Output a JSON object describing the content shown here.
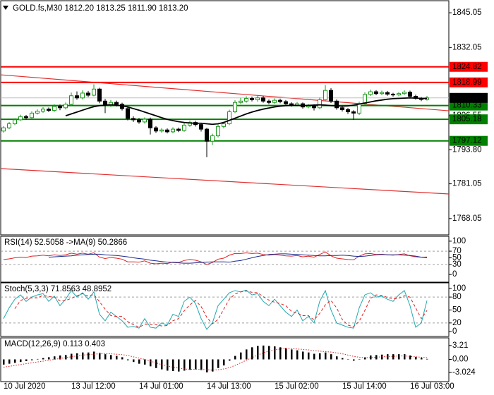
{
  "chart_data": [
    {
      "type": "candlestick",
      "title": "GOLD.fs,M30  1812.20 1813.25 1811.90 1813.20",
      "categories": [
        "10 Jul 2020",
        null,
        null,
        null,
        null,
        null,
        null,
        null,
        null,
        null,
        null,
        null,
        "13 Jul 12:00",
        null,
        null,
        null,
        null,
        null,
        null,
        null,
        null,
        null,
        null,
        null,
        "14 Jul 01:00",
        null,
        null,
        null,
        null,
        null,
        null,
        null,
        null,
        null,
        null,
        null,
        "14 Jul 13:00",
        null,
        null,
        null,
        null,
        null,
        null,
        null,
        null,
        null,
        null,
        null,
        "15 Jul 02:00",
        null,
        null,
        null,
        null,
        null,
        null,
        null,
        null,
        null,
        null,
        null,
        "15 Jul 14:00",
        null,
        null,
        null,
        null,
        null,
        null,
        null,
        null,
        null,
        null,
        null,
        "16 Jul 03:00",
        null,
        null,
        null
      ],
      "open": [
        1800.8,
        1802.0,
        1803.5,
        1805.0,
        1806.2,
        1805.8,
        1807.5,
        1808.2,
        1809.0,
        1808.5,
        1810.0,
        1809.5,
        1810.8,
        1814.0,
        1813.2,
        1815.0,
        1814.2,
        1816.5,
        1812.0,
        1810.5,
        1811.5,
        1810.8,
        1809.2,
        1805.5,
        1805.0,
        1804.2,
        1805.2,
        1802.0,
        1800.8,
        1801.2,
        1800.5,
        1801.5,
        1801.0,
        1803.0,
        1804.0,
        1803.2,
        1801.5,
        1797.0,
        1799.0,
        1802.5,
        1803.5,
        1808.0,
        1811.5,
        1812.0,
        1813.0,
        1812.5,
        1813.2,
        1812.0,
        1811.5,
        1812.3,
        1811.8,
        1811.0,
        1810.5,
        1811.0,
        1809.8,
        1810.2,
        1809.5,
        1812.5,
        1816.0,
        1812.0,
        1809.5,
        1808.8,
        1808.0,
        1807.5,
        1811.0,
        1814.5,
        1815.5,
        1814.8,
        1815.2,
        1814.6,
        1814.3,
        1814.8,
        1815.3,
        1813.8,
        1813.0,
        1812.6
      ],
      "high": [
        1802.6,
        1804.2,
        1805.6,
        1806.9,
        1806.8,
        1808.2,
        1808.9,
        1809.7,
        1809.6,
        1810.8,
        1810.7,
        1811.5,
        1815.2,
        1815.6,
        1816.0,
        1815.8,
        1818.3,
        1817.0,
        1812.8,
        1812.4,
        1812.2,
        1811.4,
        1809.8,
        1806.3,
        1805.7,
        1805.9,
        1805.8,
        1802.6,
        1801.9,
        1801.8,
        1802.2,
        1802.1,
        1803.8,
        1804.7,
        1804.6,
        1803.8,
        1802.0,
        1799.8,
        1803.2,
        1804.3,
        1808.8,
        1812.3,
        1813.2,
        1813.8,
        1813.7,
        1814.0,
        1813.9,
        1812.6,
        1813.0,
        1812.9,
        1812.4,
        1811.6,
        1811.7,
        1811.5,
        1810.9,
        1810.8,
        1813.3,
        1818.0,
        1816.8,
        1812.6,
        1810.2,
        1809.4,
        1808.6,
        1811.8,
        1815.3,
        1816.3,
        1816.1,
        1815.9,
        1815.8,
        1815.1,
        1815.4,
        1816.0,
        1815.9,
        1814.4,
        1813.5,
        1813.9
      ],
      "low": [
        1800.2,
        1801.5,
        1803.0,
        1804.6,
        1805.1,
        1805.3,
        1807.0,
        1807.6,
        1807.9,
        1808.0,
        1808.6,
        1808.9,
        1810.2,
        1812.5,
        1812.6,
        1813.5,
        1813.8,
        1811.2,
        1807.5,
        1809.8,
        1810.0,
        1808.5,
        1804.8,
        1804.2,
        1803.5,
        1803.6,
        1799.5,
        1800.1,
        1800.2,
        1799.9,
        1800.0,
        1800.4,
        1800.5,
        1802.4,
        1802.5,
        1800.6,
        1791.0,
        1795.5,
        1798.4,
        1801.8,
        1803.0,
        1807.5,
        1810.9,
        1811.4,
        1811.9,
        1811.8,
        1811.4,
        1810.8,
        1811.0,
        1811.2,
        1810.4,
        1809.9,
        1810.0,
        1809.2,
        1809.3,
        1808.5,
        1809.0,
        1812.0,
        1811.3,
        1808.8,
        1808.1,
        1807.2,
        1805.0,
        1806.8,
        1810.4,
        1813.9,
        1814.2,
        1814.2,
        1814.0,
        1813.7,
        1813.8,
        1814.3,
        1813.2,
        1812.5,
        1812.0,
        1812.2
      ],
      "close": [
        1802.0,
        1803.5,
        1805.0,
        1806.2,
        1805.8,
        1807.5,
        1808.2,
        1809.0,
        1808.5,
        1810.0,
        1809.5,
        1810.8,
        1814.0,
        1813.2,
        1815.0,
        1814.2,
        1816.5,
        1812.0,
        1810.5,
        1811.5,
        1810.8,
        1809.2,
        1805.5,
        1805.0,
        1804.2,
        1805.2,
        1802.0,
        1800.8,
        1801.2,
        1800.5,
        1801.5,
        1801.0,
        1803.0,
        1804.0,
        1803.2,
        1801.5,
        1797.0,
        1799.0,
        1802.5,
        1803.5,
        1808.0,
        1811.5,
        1812.0,
        1813.0,
        1812.5,
        1813.2,
        1812.0,
        1811.5,
        1812.3,
        1811.8,
        1811.0,
        1810.5,
        1811.0,
        1809.8,
        1810.2,
        1809.5,
        1812.5,
        1816.0,
        1812.0,
        1809.5,
        1808.8,
        1808.0,
        1807.5,
        1811.0,
        1814.5,
        1815.5,
        1814.8,
        1815.2,
        1814.6,
        1814.3,
        1814.8,
        1815.3,
        1813.8,
        1813.0,
        1812.6,
        1813.2
      ],
      "up_color": "#1a9a1a",
      "down_color": "#000000",
      "series": [
        {
          "type": "line",
          "style": "solid",
          "color": "#000000",
          "values": [
            null,
            null,
            null,
            null,
            null,
            null,
            null,
            null,
            null,
            null,
            null,
            1806.5,
            1807.2,
            1807.9,
            1808.6,
            1809.3,
            1809.9,
            1810.3,
            1810.5,
            1810.6,
            1810.5,
            1810.2,
            1809.8,
            1809.2,
            1808.6,
            1807.9,
            1807.2,
            1806.5,
            1805.8,
            1805.2,
            1804.7,
            1804.3,
            1804.0,
            1803.8,
            1803.7,
            1803.7,
            1803.5,
            1803.3,
            1803.5,
            1804.0,
            1804.8,
            1805.6,
            1806.4,
            1807.2,
            1807.9,
            1808.5,
            1809.0,
            1809.4,
            1809.8,
            1810.1,
            1810.3,
            1810.4,
            1810.4,
            1810.3,
            1810.4,
            1810.5,
            1810.6,
            1810.5,
            1810.3,
            1810.2,
            1810.1,
            1810.2,
            1810.5,
            1810.9,
            1811.3,
            1811.7,
            1812.1,
            1812.4,
            1812.7,
            1812.9,
            1813.0,
            1813.1,
            1813.2,
            1813.1,
            1813.0,
            1813.0
          ]
        }
      ],
      "trendlines": [
        {
          "color": "#e03030",
          "values": [
            1821.83,
            1808.37
          ]
        },
        {
          "color": "#e03030",
          "values": [
            1786.74,
            1777.24
          ]
        }
      ],
      "levels": [
        {
          "value": 1824.82,
          "color": "#ff0000",
          "label_color": "#ffffff"
        },
        {
          "value": 1818.99,
          "color": "#ff0000",
          "label_color": "#ffffff"
        },
        {
          "value": 1810.33,
          "color": "#008000",
          "label_color": "#000000"
        },
        {
          "value": 1805.18,
          "color": "#008000",
          "label_color": "#000000"
        },
        {
          "value": 1797.12,
          "color": "#008000",
          "label_color": "#000000"
        }
      ],
      "last_price": {
        "value": 1813.2,
        "label": "1813.20",
        "color": "#000000",
        "line_color": "#c0c0c0"
      },
      "ylim": [
        1762.2,
        1849.3
      ],
      "yticks": [
        1768.05,
        1781.05,
        {
          "value": 1793.8,
          "label": "1793.80"
        },
        1806.55,
        1832.05,
        1845.05
      ],
      "grid": false
    },
    {
      "type": "line",
      "title": "RSI(14) 52.5058  ->MA(9) 50.2866",
      "ylim": [
        -20.8,
        112.5
      ],
      "yticks": [
        0,
        30,
        50,
        70,
        100
      ],
      "levels": [
        70,
        30
      ],
      "series": [
        {
          "type": "line",
          "style": "solid",
          "color": "#e02020",
          "values": [
            45,
            47,
            50,
            52,
            51,
            55,
            56,
            58,
            56,
            59,
            57,
            59,
            64,
            61,
            64,
            61,
            65,
            52,
            48,
            51,
            49,
            46,
            38,
            38,
            37,
            41,
            34,
            32,
            34,
            33,
            37,
            36,
            42,
            45,
            43,
            38,
            30,
            36,
            46,
            49,
            58,
            63,
            63,
            65,
            63,
            64,
            60,
            58,
            60,
            58,
            56,
            55,
            57,
            53,
            55,
            52,
            60,
            68,
            56,
            49,
            47,
            45,
            44,
            55,
            62,
            63,
            60,
            61,
            59,
            58,
            60,
            62,
            56,
            53,
            52,
            52.5058
          ]
        },
        {
          "type": "line",
          "style": "solid",
          "color": "#1c2a8c",
          "values": [
            null,
            null,
            null,
            null,
            null,
            null,
            null,
            null,
            52,
            53,
            54,
            55,
            56,
            58,
            59,
            60,
            61,
            61,
            59,
            58,
            57,
            55,
            53,
            50,
            48,
            46,
            43,
            41,
            39,
            37,
            36,
            35,
            34,
            34,
            35,
            36,
            37,
            38,
            38,
            38,
            37,
            40,
            42,
            46,
            50,
            54,
            57,
            60,
            61,
            62,
            62,
            61,
            60,
            59,
            58,
            57,
            56,
            56,
            57,
            57,
            58,
            57,
            55,
            54,
            55,
            57,
            59,
            60,
            59,
            59,
            59,
            58,
            57,
            55,
            52,
            50.2866
          ]
        }
      ]
    },
    {
      "type": "line",
      "title": "Stoch(5,3,3) 71.8563 48.8952",
      "ylim": [
        -9.7,
        111.3
      ],
      "yticks": [
        0,
        20,
        50,
        80,
        100
      ],
      "levels": [
        80,
        20
      ],
      "series": [
        {
          "type": "line",
          "style": "solid",
          "color": "#20a8b0",
          "values": [
            30,
            55,
            75,
            85,
            70,
            80,
            85,
            88,
            70,
            82,
            60,
            75,
            95,
            80,
            90,
            75,
            92,
            40,
            25,
            45,
            35,
            25,
            10,
            12,
            8,
            30,
            10,
            8,
            20,
            15,
            40,
            35,
            70,
            80,
            65,
            30,
            5,
            20,
            60,
            75,
            90,
            95,
            92,
            96,
            85,
            88,
            70,
            60,
            75,
            60,
            45,
            35,
            50,
            25,
            35,
            20,
            70,
            95,
            50,
            20,
            15,
            10,
            8,
            55,
            85,
            90,
            80,
            82,
            75,
            70,
            85,
            95,
            60,
            10,
            20,
            71.8563
          ]
        },
        {
          "type": "line",
          "style": "dashed",
          "color": "#e02020",
          "values": [
            null,
            null,
            53,
            72,
            77,
            78,
            78,
            84,
            81,
            80,
            71,
            72,
            77,
            83,
            88,
            82,
            86,
            69,
            52,
            37,
            35,
            35,
            23,
            16,
            10,
            17,
            16,
            16,
            13,
            14,
            25,
            30,
            48,
            62,
            72,
            58,
            33,
            18,
            28,
            52,
            75,
            87,
            92,
            94,
            91,
            90,
            81,
            73,
            68,
            65,
            60,
            47,
            43,
            37,
            37,
            27,
            42,
            62,
            72,
            55,
            28,
            15,
            11,
            24,
            49,
            77,
            85,
            84,
            79,
            76,
            77,
            83,
            80,
            55,
            30,
            48.8952
          ]
        }
      ]
    },
    {
      "type": "bar",
      "title": "MACD(12,26,9) 0.113 0.403",
      "ylim": [
        -4.97,
        4.81
      ],
      "yticks": [
        -3.024,
        {
          "value": 0,
          "label": "0.00"
        },
        3.21
      ],
      "series": [
        {
          "type": "bar",
          "color": "#000000",
          "values": [
            -1.2,
            -1.0,
            -0.8,
            -0.6,
            -0.4,
            -0.2,
            0.1,
            0.3,
            0.5,
            0.7,
            0.9,
            1.0,
            1.3,
            1.4,
            1.6,
            1.6,
            1.8,
            1.5,
            1.2,
            1.0,
            0.8,
            0.5,
            -0.2,
            -0.6,
            -1.0,
            -1.2,
            -1.6,
            -2.0,
            -2.3,
            -2.6,
            -2.7,
            -2.8,
            -2.6,
            -2.4,
            -2.3,
            -2.5,
            -3.0,
            -2.8,
            -2.0,
            -1.4,
            -0.3,
            0.8,
            1.6,
            2.3,
            2.8,
            3.1,
            3.2,
            3.1,
            3.0,
            2.8,
            2.6,
            2.3,
            2.1,
            1.8,
            1.6,
            1.3,
            1.4,
            1.6,
            1.2,
            0.7,
            0.3,
            0.0,
            -0.3,
            0.0,
            0.5,
            0.9,
            1.0,
            1.1,
            1.2,
            1.2,
            1.2,
            1.2,
            0.9,
            0.6,
            0.35,
            0.113
          ]
        },
        {
          "type": "line",
          "style": "dotted",
          "color": "#e02020",
          "values": [
            -1.8,
            -1.6,
            -1.4,
            -1.2,
            -1.0,
            -0.8,
            -0.6,
            -0.4,
            -0.2,
            0.0,
            0.2,
            0.4,
            0.6,
            0.8,
            1.0,
            1.1,
            1.2,
            1.3,
            1.3,
            1.3,
            1.2,
            1.1,
            0.9,
            0.6,
            0.3,
            0.0,
            -0.4,
            -0.8,
            -1.2,
            -1.5,
            -1.8,
            -2.0,
            -2.2,
            -2.3,
            -2.3,
            -2.3,
            -2.4,
            -2.5,
            -2.4,
            -2.2,
            -1.9,
            -1.4,
            -0.8,
            -0.2,
            0.4,
            1.0,
            1.5,
            1.9,
            2.2,
            2.4,
            2.5,
            2.5,
            2.4,
            2.3,
            2.2,
            2.0,
            1.9,
            1.8,
            1.7,
            1.5,
            1.3,
            1.0,
            0.7,
            0.5,
            0.4,
            0.4,
            0.5,
            0.6,
            0.7,
            0.7,
            0.8,
            0.8,
            0.7,
            0.6,
            0.5,
            0.403
          ]
        }
      ]
    }
  ]
}
